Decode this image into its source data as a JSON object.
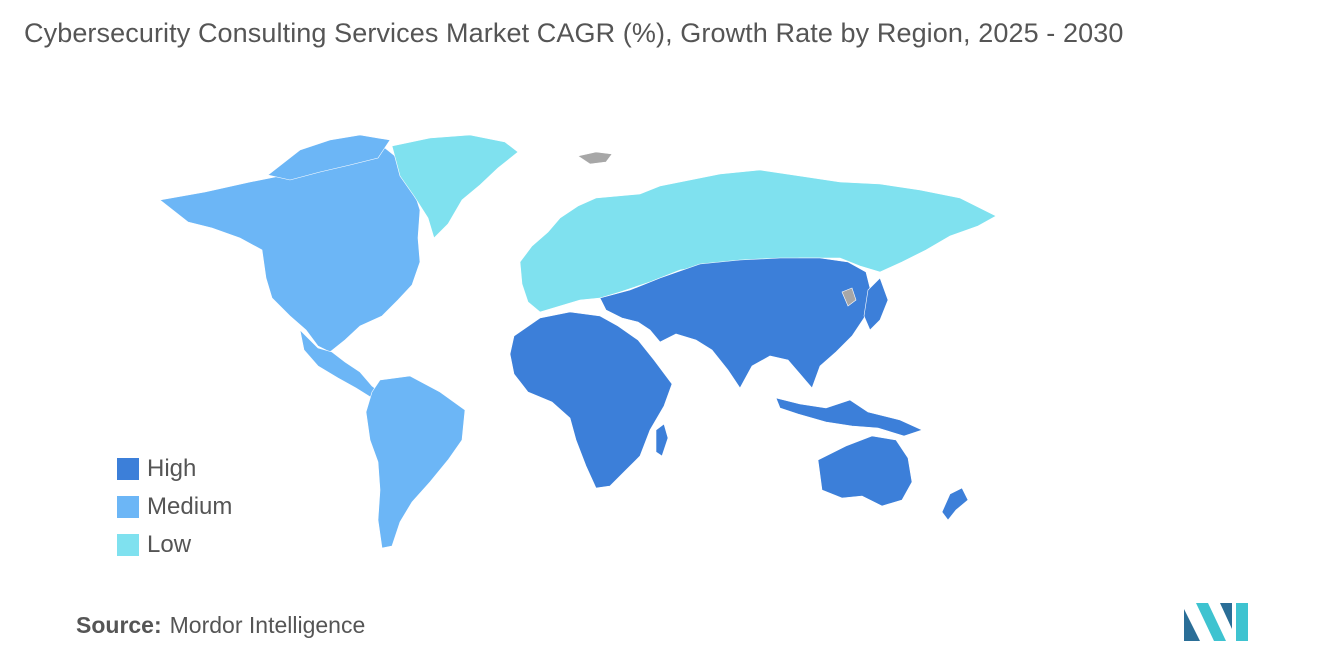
{
  "title": "Cybersecurity Consulting Services Market CAGR (%), Growth Rate by Region, 2025 - 2030",
  "colors": {
    "high": "#3c7fd9",
    "medium": "#6cb6f6",
    "low": "#7fe1ef",
    "no_data": "#a7a7a7",
    "logo_dark": "#2a6e97",
    "logo_light": "#3ec3d0"
  },
  "legend": [
    {
      "label": "High",
      "color": "#3c7fd9"
    },
    {
      "label": "Medium",
      "color": "#6cb6f6"
    },
    {
      "label": "Low",
      "color": "#7fe1ef"
    }
  ],
  "regions": {
    "north_america": "Medium",
    "south_america": "Medium",
    "europe": "Low",
    "russia_central_asia": "Low",
    "greenland": "Low",
    "africa": "High",
    "middle_east": "High",
    "asia_pacific": "High",
    "australia_nz": "High"
  },
  "source": {
    "label": "Source:",
    "value": "Mordor Intelligence"
  }
}
